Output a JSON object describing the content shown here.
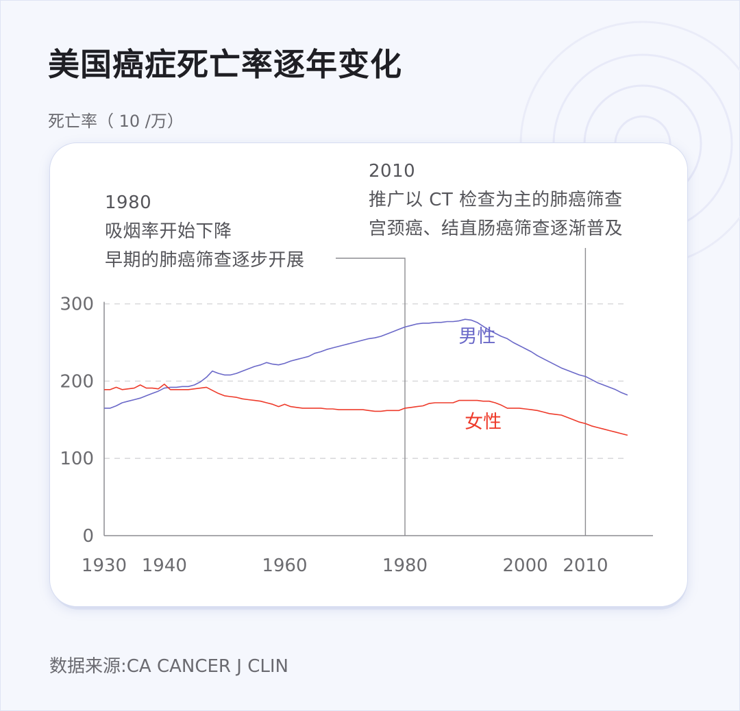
{
  "title": "美国癌症死亡率逐年变化",
  "unit_label": "死亡率（ 10 /万）",
  "source": "数据来源:CA CANCER J CLIN",
  "chart_data": {
    "type": "line",
    "xlim": [
      1930,
      2024
    ],
    "ylim": [
      0,
      300
    ],
    "yticks": [
      0,
      100,
      200,
      300
    ],
    "ytick_labels": [
      "0",
      "100",
      "200",
      "300"
    ],
    "xticks": [
      1930,
      1940,
      1960,
      1980,
      2000,
      2010
    ],
    "xtick_labels": [
      "1930",
      "1940",
      "1960",
      "1980",
      "2000",
      "2010"
    ],
    "grid": "horizontal dashed",
    "series": [
      {
        "name": "男性",
        "color": "#6a68c8",
        "x": [
          1930,
          1931,
          1932,
          1933,
          1934,
          1935,
          1936,
          1937,
          1938,
          1939,
          1940,
          1941,
          1942,
          1943,
          1944,
          1945,
          1946,
          1947,
          1948,
          1949,
          1950,
          1951,
          1952,
          1953,
          1954,
          1955,
          1956,
          1957,
          1958,
          1959,
          1960,
          1961,
          1962,
          1963,
          1964,
          1965,
          1966,
          1967,
          1968,
          1969,
          1970,
          1971,
          1972,
          1973,
          1974,
          1975,
          1976,
          1977,
          1978,
          1979,
          1980,
          1981,
          1982,
          1983,
          1984,
          1985,
          1986,
          1987,
          1988,
          1989,
          1990,
          1991,
          1992,
          1993,
          1994,
          1995,
          1996,
          1997,
          1998,
          1999,
          2000,
          2001,
          2002,
          2003,
          2004,
          2005,
          2006,
          2007,
          2008,
          2009,
          2010,
          2011,
          2012,
          2013,
          2014,
          2015,
          2016,
          2017
        ],
        "values": [
          165,
          165,
          168,
          172,
          174,
          176,
          178,
          181,
          184,
          187,
          191,
          192,
          192,
          193,
          193,
          195,
          199,
          205,
          213,
          210,
          208,
          208,
          210,
          213,
          216,
          219,
          221,
          224,
          222,
          221,
          223,
          226,
          228,
          230,
          232,
          236,
          238,
          241,
          243,
          245,
          247,
          249,
          251,
          253,
          255,
          256,
          258,
          261,
          264,
          267,
          270,
          272,
          274,
          275,
          275,
          276,
          276,
          277,
          277,
          278,
          280,
          279,
          276,
          271,
          266,
          262,
          258,
          255,
          250,
          246,
          242,
          238,
          233,
          229,
          225,
          221,
          217,
          214,
          211,
          208,
          206,
          202,
          198,
          195,
          192,
          189,
          185,
          182
        ]
      },
      {
        "name": "女性",
        "color": "#ee3a2a",
        "x": [
          1930,
          1931,
          1932,
          1933,
          1934,
          1935,
          1936,
          1937,
          1938,
          1939,
          1940,
          1941,
          1942,
          1943,
          1944,
          1945,
          1946,
          1947,
          1948,
          1949,
          1950,
          1951,
          1952,
          1953,
          1954,
          1955,
          1956,
          1957,
          1958,
          1959,
          1960,
          1961,
          1962,
          1963,
          1964,
          1965,
          1966,
          1967,
          1968,
          1969,
          1970,
          1971,
          1972,
          1973,
          1974,
          1975,
          1976,
          1977,
          1978,
          1979,
          1980,
          1981,
          1982,
          1983,
          1984,
          1985,
          1986,
          1987,
          1988,
          1989,
          1990,
          1991,
          1992,
          1993,
          1994,
          1995,
          1996,
          1997,
          1998,
          1999,
          2000,
          2001,
          2002,
          2003,
          2004,
          2005,
          2006,
          2007,
          2008,
          2009,
          2010,
          2011,
          2012,
          2013,
          2014,
          2015,
          2016,
          2017
        ],
        "values": [
          189,
          189,
          192,
          189,
          190,
          191,
          195,
          191,
          191,
          190,
          196,
          189,
          189,
          189,
          189,
          190,
          191,
          192,
          188,
          184,
          181,
          180,
          179,
          177,
          176,
          175,
          174,
          172,
          170,
          167,
          170,
          167,
          166,
          165,
          165,
          165,
          165,
          164,
          164,
          163,
          163,
          163,
          163,
          163,
          162,
          161,
          161,
          162,
          162,
          162,
          165,
          166,
          167,
          168,
          171,
          172,
          172,
          172,
          172,
          175,
          175,
          175,
          175,
          174,
          174,
          172,
          169,
          165,
          165,
          165,
          164,
          163,
          162,
          160,
          158,
          157,
          156,
          153,
          150,
          147,
          145,
          142,
          140,
          138,
          136,
          134,
          132,
          130
        ]
      }
    ],
    "series_labels": [
      {
        "text": "男性",
        "x": 1992,
        "y": 250
      },
      {
        "text": "女性",
        "x": 1993,
        "y": 139
      }
    ],
    "annotations": [
      {
        "x": 1980,
        "lines": [
          "1980",
          "吸烟率开始下降",
          "早期的肺癌筛查逐步开展"
        ]
      },
      {
        "x": 2010,
        "lines": [
          "2010",
          "推广以 CT 检查为主的肺癌筛查",
          "宫颈癌、结直肠癌筛查逐渐普及"
        ]
      }
    ]
  }
}
